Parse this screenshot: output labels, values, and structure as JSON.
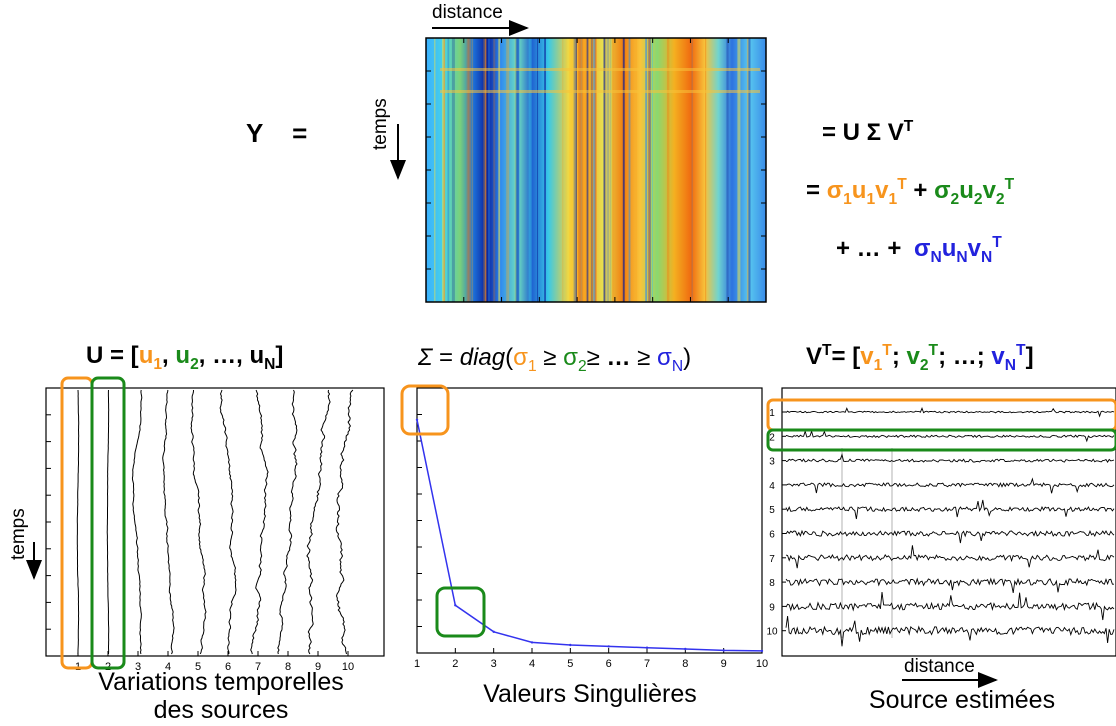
{
  "top": {
    "y_label": "Y",
    "y_equals": "=",
    "distance_label": "distance",
    "temps_label": "temps",
    "eq1": "= U Σ V",
    "eq1_sup": "T",
    "eq2_eq": "=",
    "eq3_prefix": "+ … +",
    "sigma_char": "σ",
    "u_char": "u",
    "v_char": "v",
    "sub1": "1",
    "sub2": "2",
    "subN": "N",
    "supT": "T",
    "plus": "+"
  },
  "u_panel": {
    "title_prefix": "U = [",
    "title_u1": "u",
    "title_sep": ",",
    "title_dots": "…,",
    "title_close": "]",
    "temps_label": "temps",
    "caption_line1": "Variations temporelles",
    "caption_line2": "des sources",
    "ticks": [
      "1",
      "2",
      "3",
      "4",
      "5",
      "6",
      "7",
      "8",
      "9",
      "10"
    ]
  },
  "sigma_panel": {
    "title_sigma": "Σ",
    "title_mid": " = ",
    "title_diag": "diag",
    "title_open": "(",
    "title_ge": "≥",
    "title_dots": "…",
    "title_close": ")",
    "caption": "Valeurs Singulières",
    "x_ticks": [
      "1",
      "2",
      "3",
      "4",
      "5",
      "6",
      "7",
      "8",
      "9",
      "10"
    ]
  },
  "v_panel": {
    "title_v": "V",
    "title_supT": "T",
    "title_eq": "= [",
    "title_semi": ";",
    "title_dots": "…;",
    "title_close": "]",
    "distance_label": "distance",
    "caption": "Source estimées",
    "row_labels": [
      "1",
      "2",
      "3",
      "4",
      "5",
      "6",
      "7",
      "8",
      "9",
      "10"
    ]
  },
  "chart_data": {
    "type": "line",
    "x": [
      1,
      2,
      3,
      4,
      5,
      6,
      7,
      8,
      9,
      10
    ],
    "values": [
      0.88,
      0.18,
      0.08,
      0.04,
      0.03,
      0.025,
      0.02,
      0.015,
      0.01,
      0.008
    ],
    "xlim": [
      1,
      10
    ],
    "ylim": [
      0,
      1
    ]
  },
  "colors": {
    "orange": "#f7941d",
    "green": "#1a8a1a",
    "blue": "#2222dd"
  }
}
